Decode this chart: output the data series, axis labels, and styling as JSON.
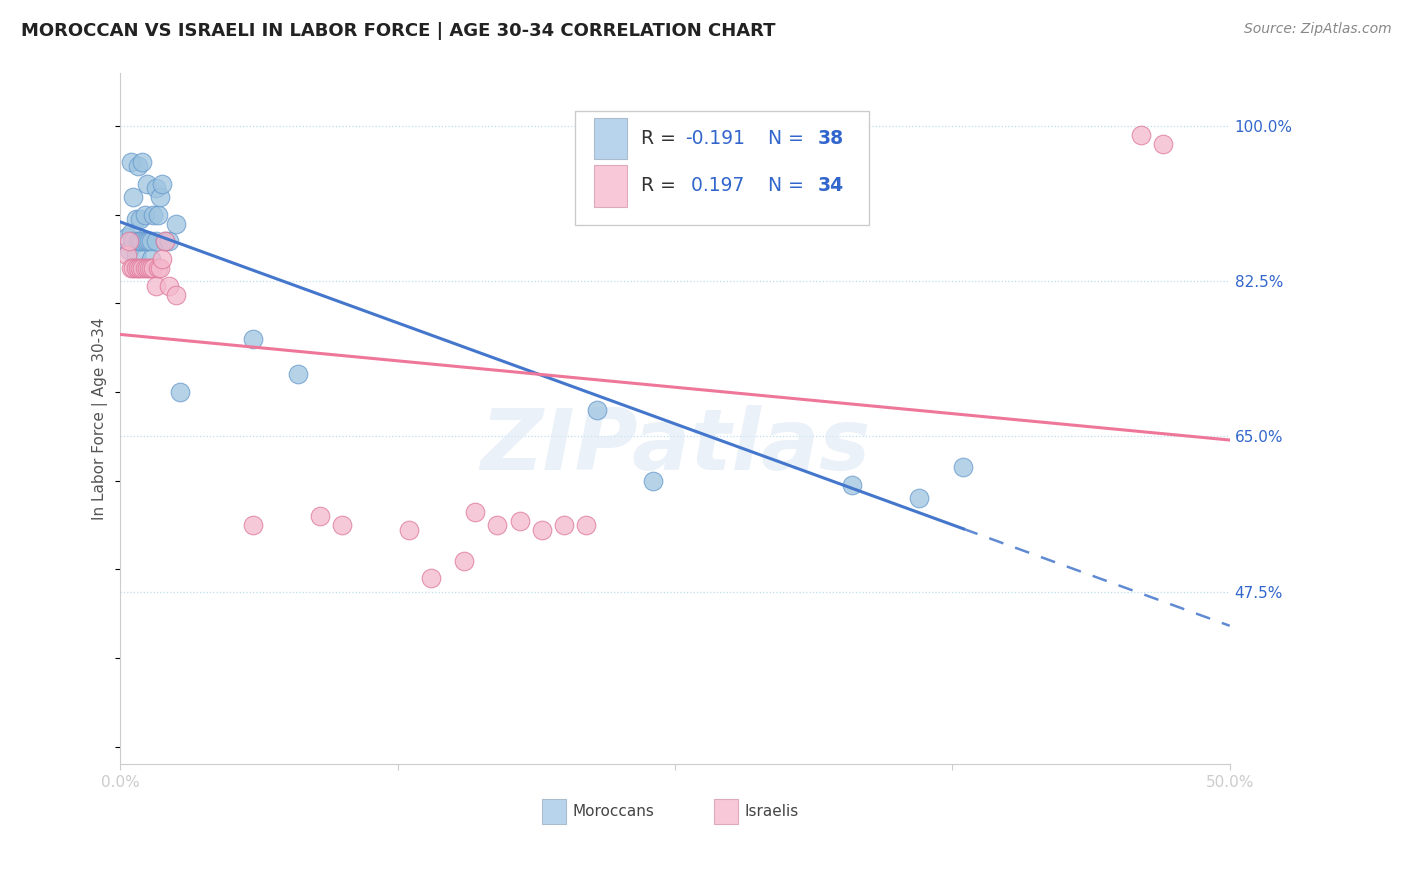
{
  "title": "MOROCCAN VS ISRAELI IN LABOR FORCE | AGE 30-34 CORRELATION CHART",
  "source": "Source: ZipAtlas.com",
  "ylabel": "In Labor Force | Age 30-34",
  "xlim": [
    0.0,
    0.5
  ],
  "ylim": [
    0.28,
    1.06
  ],
  "xtick_vals": [
    0.0,
    0.125,
    0.25,
    0.375,
    0.5
  ],
  "xtick_labels": [
    "0.0%",
    "",
    "",
    "",
    "50.0%"
  ],
  "ytick_labels_right": [
    "100.0%",
    "82.5%",
    "65.0%",
    "47.5%"
  ],
  "ytick_vals_right": [
    1.0,
    0.825,
    0.65,
    0.475
  ],
  "moroccan_color": "#9ec4e0",
  "moroccan_edge": "#6699cc",
  "israeli_color": "#f4b8cc",
  "israeli_edge": "#dd7799",
  "legend_moroccan_fill": "#b8d4ec",
  "legend_israeli_fill": "#f8c8d8",
  "blue_text": "#3366cc",
  "dark_text": "#333333",
  "R_moroccan": -0.191,
  "N_moroccan": 38,
  "R_israeli": 0.197,
  "N_israeli": 34,
  "watermark": "ZIPatlas",
  "moroccan_line_color": "#4477cc",
  "israeli_line_color": "#ee7799",
  "moroccan_x": [
    0.003,
    0.004,
    0.005,
    0.005,
    0.006,
    0.006,
    0.007,
    0.007,
    0.008,
    0.008,
    0.009,
    0.009,
    0.01,
    0.01,
    0.011,
    0.011,
    0.012,
    0.012,
    0.013,
    0.014,
    0.014,
    0.015,
    0.016,
    0.016,
    0.017,
    0.018,
    0.019,
    0.02,
    0.022,
    0.025,
    0.027,
    0.06,
    0.08,
    0.215,
    0.24,
    0.33,
    0.36,
    0.38
  ],
  "moroccan_y": [
    0.875,
    0.86,
    0.88,
    0.96,
    0.87,
    0.92,
    0.855,
    0.895,
    0.87,
    0.955,
    0.87,
    0.895,
    0.87,
    0.96,
    0.87,
    0.9,
    0.87,
    0.935,
    0.87,
    0.87,
    0.85,
    0.9,
    0.87,
    0.93,
    0.9,
    0.92,
    0.935,
    0.87,
    0.87,
    0.89,
    0.7,
    0.76,
    0.72,
    0.68,
    0.6,
    0.595,
    0.58,
    0.615
  ],
  "israeli_x": [
    0.003,
    0.004,
    0.005,
    0.006,
    0.007,
    0.008,
    0.009,
    0.01,
    0.011,
    0.012,
    0.013,
    0.014,
    0.015,
    0.016,
    0.017,
    0.018,
    0.019,
    0.02,
    0.022,
    0.025,
    0.06,
    0.09,
    0.1,
    0.13,
    0.16,
    0.17,
    0.18,
    0.19,
    0.2,
    0.21,
    0.155,
    0.14,
    0.46,
    0.47
  ],
  "israeli_y": [
    0.855,
    0.87,
    0.84,
    0.84,
    0.84,
    0.84,
    0.84,
    0.84,
    0.84,
    0.84,
    0.84,
    0.84,
    0.84,
    0.82,
    0.84,
    0.84,
    0.85,
    0.87,
    0.82,
    0.81,
    0.55,
    0.56,
    0.55,
    0.545,
    0.565,
    0.55,
    0.555,
    0.545,
    0.55,
    0.55,
    0.51,
    0.49,
    0.99,
    0.98
  ]
}
